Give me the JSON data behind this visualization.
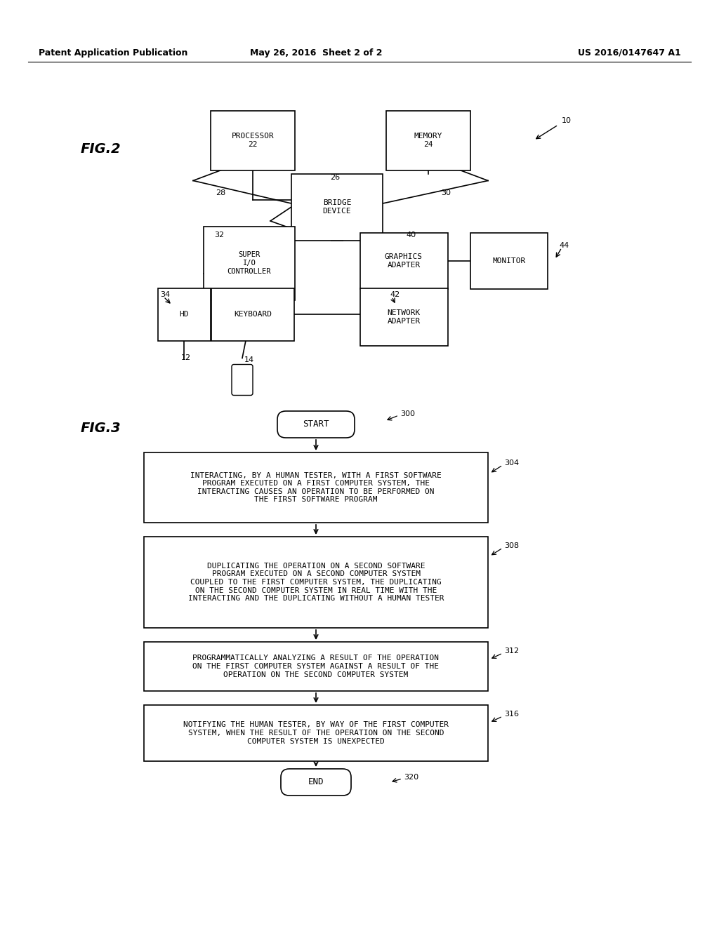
{
  "header_left": "Patent Application Publication",
  "header_mid": "May 26, 2016  Sheet 2 of 2",
  "header_right": "US 2016/0147647 A1",
  "fig2_label": "FIG.2",
  "fig3_label": "FIG.3",
  "bg_color": "#ffffff",
  "fig2": {
    "proc_label": "PROCESSOR\n22",
    "mem_label": "MEMORY\n24",
    "bridge_label": "BRIDGE\nDEVICE",
    "sio_label": "SUPER\nI/O\nCONTROLLER",
    "gfx_label": "GRAPHICS\nADAPTER",
    "mon_label": "MONITOR",
    "hd_label": "HD",
    "kbd_label": "KEYBOARD",
    "net_label": "NETWORK\nADAPTER"
  },
  "fig3": {
    "start_label": "START",
    "end_label": "END",
    "box1_label": "INTERACTING, BY A HUMAN TESTER, WITH A FIRST SOFTWARE\nPROGRAM EXECUTED ON A FIRST COMPUTER SYSTEM, THE\nINTERACTING CAUSES AN OPERATION TO BE PERFORMED ON\nTHE FIRST SOFTWARE PROGRAM",
    "box2_label": "DUPLICATING THE OPERATION ON A SECOND SOFTWARE\nPROGRAM EXECUTED ON A SECOND COMPUTER SYSTEM\nCOUPLED TO THE FIRST COMPUTER SYSTEM, THE DUPLICATING\nON THE SECOND COMPUTER SYSTEM IN REAL TIME WITH THE\nINTERACTING AND THE DUPLICATING WITHOUT A HUMAN TESTER",
    "box3_label": "PROGRAMMATICALLY ANALYZING A RESULT OF THE OPERATION\nON THE FIRST COMPUTER SYSTEM AGAINST A RESULT OF THE\nOPERATION ON THE SECOND COMPUTER SYSTEM",
    "box4_label": "NOTIFYING THE HUMAN TESTER, BY WAY OF THE FIRST COMPUTER\nSYSTEM, WHEN THE RESULT OF THE OPERATION ON THE SECOND\nCOMPUTER SYSTEM IS UNEXPECTED"
  }
}
